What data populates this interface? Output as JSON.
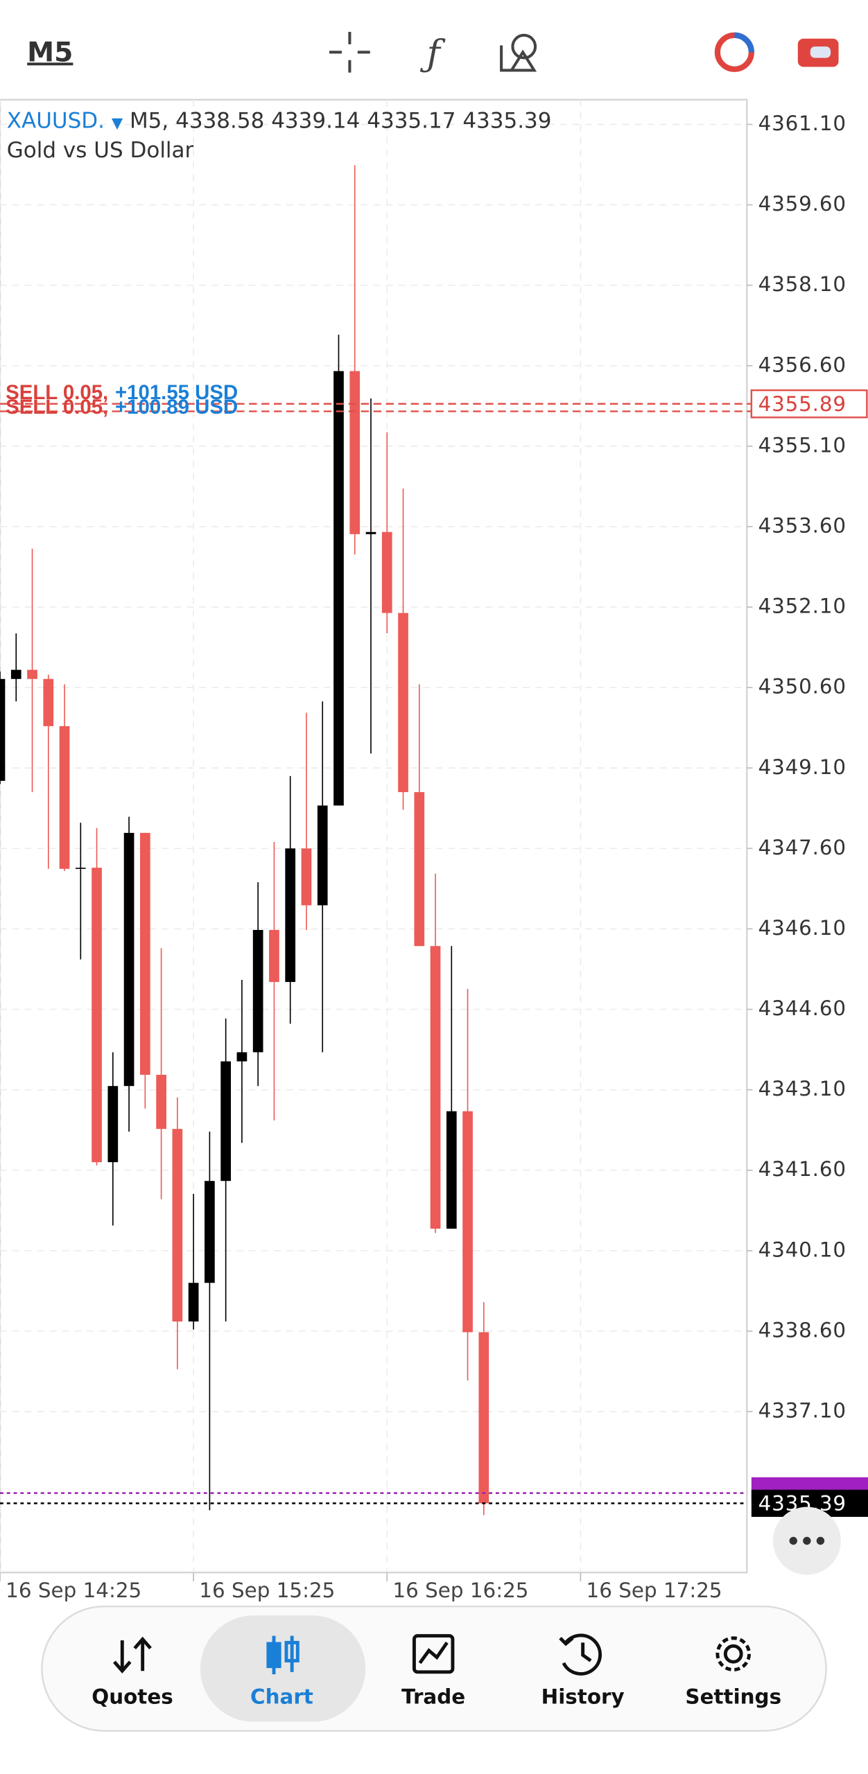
{
  "toolbar": {
    "timeframe": "M5"
  },
  "chart_data": {
    "type": "candlestick",
    "symbol": "XAUUSD.",
    "timeframe": "M5,",
    "header_ohlc": {
      "open": 4338.58,
      "high": 4339.14,
      "low": 4335.17,
      "close": 4335.39
    },
    "description": "Gold vs US Dollar",
    "categories": [
      "16 Sep 14:25",
      null,
      null,
      null,
      null,
      null,
      null,
      null,
      null,
      null,
      null,
      null,
      "16 Sep 15:25",
      null,
      null,
      null,
      null,
      null,
      null,
      null,
      null,
      null,
      null,
      null,
      "16 Sep 16:25",
      null,
      null,
      null,
      null,
      null,
      null,
      null,
      null,
      null,
      null,
      null,
      "16 Sep 17:25"
    ],
    "open": [
      4348.86,
      4350.76,
      4350.93,
      4350.76,
      4349.88,
      4347.22,
      4347.24,
      4341.75,
      4343.17,
      4347.89,
      4343.38,
      4342.37,
      4338.78,
      4339.5,
      4341.4,
      4343.63,
      4343.8,
      4346.08,
      4345.11,
      4347.6,
      4346.54,
      4348.4,
      4356.5,
      4353.46,
      4353.5,
      4351.99,
      4348.65,
      4345.78,
      4340.51,
      4342.7,
      4338.58,
      null,
      null,
      null,
      null,
      null,
      null
    ],
    "high": [
      4350.9,
      4351.61,
      4353.19,
      4350.84,
      4350.66,
      4348.08,
      4347.98,
      4343.8,
      4348.19,
      4347.89,
      4345.74,
      4342.96,
      4341.16,
      4342.32,
      4344.43,
      4345.15,
      4346.97,
      4347.72,
      4348.95,
      4350.13,
      4350.34,
      4357.18,
      4360.34,
      4355.99,
      4355.36,
      4354.31,
      4350.66,
      4347.13,
      4345.78,
      4344.98,
      4339.14,
      null,
      null,
      null,
      null,
      null,
      null
    ],
    "low": [
      4348.8,
      4350.34,
      4348.65,
      4347.22,
      4347.18,
      4345.53,
      4341.69,
      4340.57,
      4342.32,
      4342.75,
      4341.06,
      4337.89,
      4338.63,
      4335.26,
      4338.78,
      4342.11,
      4343.17,
      4342.53,
      4344.33,
      4346.08,
      4343.8,
      4348.4,
      4353.08,
      4349.37,
      4351.61,
      4348.32,
      4345.78,
      4340.43,
      4340.51,
      4337.68,
      4335.17,
      null,
      null,
      null,
      null,
      null,
      null
    ],
    "close": [
      4350.76,
      4350.93,
      4350.76,
      4349.88,
      4347.22,
      4347.24,
      4341.75,
      4343.17,
      4347.89,
      4343.38,
      4342.37,
      4338.78,
      4339.5,
      4341.4,
      4343.63,
      4343.8,
      4346.08,
      4345.11,
      4347.6,
      4346.54,
      4348.4,
      4356.5,
      4353.46,
      4353.5,
      4351.99,
      4348.65,
      4345.78,
      4340.51,
      4342.7,
      4338.58,
      4335.39,
      null,
      null,
      null,
      null,
      null,
      null
    ],
    "up_color": "#000000",
    "down_color": "#ec5b57",
    "ylim": [
      4334.1,
      4361.56
    ],
    "yticks": [
      {
        "value": 4361.1,
        "label": "4361.10"
      },
      {
        "value": 4359.6,
        "label": "4359.60"
      },
      {
        "value": 4358.1,
        "label": "4358.10"
      },
      {
        "value": 4356.6,
        "label": "4356.60"
      },
      {
        "value": 4355.1,
        "label": "4355.10"
      },
      {
        "value": 4353.6,
        "label": "4353.60"
      },
      {
        "value": 4352.1,
        "label": "4352.10"
      },
      {
        "value": 4350.6,
        "label": "4350.60"
      },
      {
        "value": 4349.1,
        "label": "4349.10"
      },
      {
        "value": 4347.6,
        "label": "4347.60"
      },
      {
        "value": 4346.1,
        "label": "4346.10"
      },
      {
        "value": 4344.6,
        "label": "4344.60"
      },
      {
        "value": 4343.1,
        "label": "4343.10"
      },
      {
        "value": 4341.6,
        "label": "4341.60"
      },
      {
        "value": 4340.1,
        "label": "4340.10"
      },
      {
        "value": 4338.6,
        "label": "4338.60"
      },
      {
        "value": 4337.1,
        "label": "4337.10"
      }
    ],
    "grid": true,
    "orders": [
      {
        "side": "SELL 0.05,",
        "profit": "+101.55 USD",
        "price": 4355.89
      },
      {
        "side": "SELL 0.05,",
        "profit": "+100.89 USD",
        "price": 4355.75
      }
    ],
    "ask": 4335.58,
    "bid": 4335.39
  },
  "nav": {
    "items": [
      "Quotes",
      "Chart",
      "Trade",
      "History",
      "Settings"
    ]
  }
}
